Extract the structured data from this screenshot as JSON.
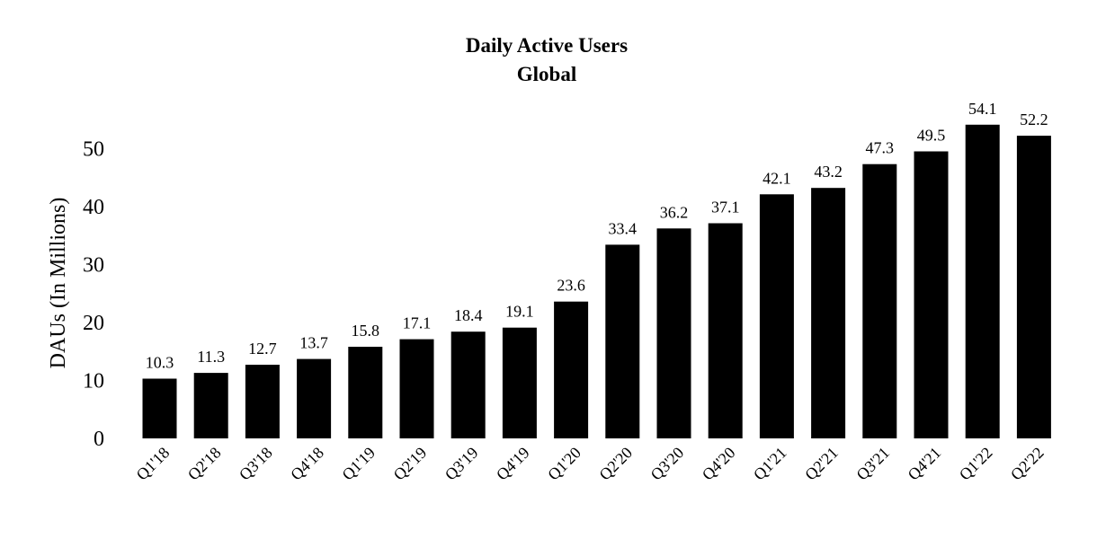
{
  "chart_data": {
    "type": "bar",
    "title": "Daily Active Users",
    "subtitle": "Global",
    "xlabel": "",
    "ylabel": "DAUs (In Millions)",
    "ylim": [
      0,
      55
    ],
    "yticks": [
      0,
      10,
      20,
      30,
      40,
      50
    ],
    "grid": false,
    "legend": "none",
    "bar_color": "#000000",
    "categories": [
      "Q1'18",
      "Q2'18",
      "Q3'18",
      "Q4'18",
      "Q1'19",
      "Q2'19",
      "Q3'19",
      "Q4'19",
      "Q1'20",
      "Q2'20",
      "Q3'20",
      "Q4'20",
      "Q1'21",
      "Q2'21",
      "Q3'21",
      "Q4'21",
      "Q1'22",
      "Q2'22"
    ],
    "values": [
      10.3,
      11.3,
      12.7,
      13.7,
      15.8,
      17.1,
      18.4,
      19.1,
      23.6,
      33.4,
      36.2,
      37.1,
      42.1,
      43.2,
      47.3,
      49.5,
      54.1,
      52.2
    ]
  }
}
